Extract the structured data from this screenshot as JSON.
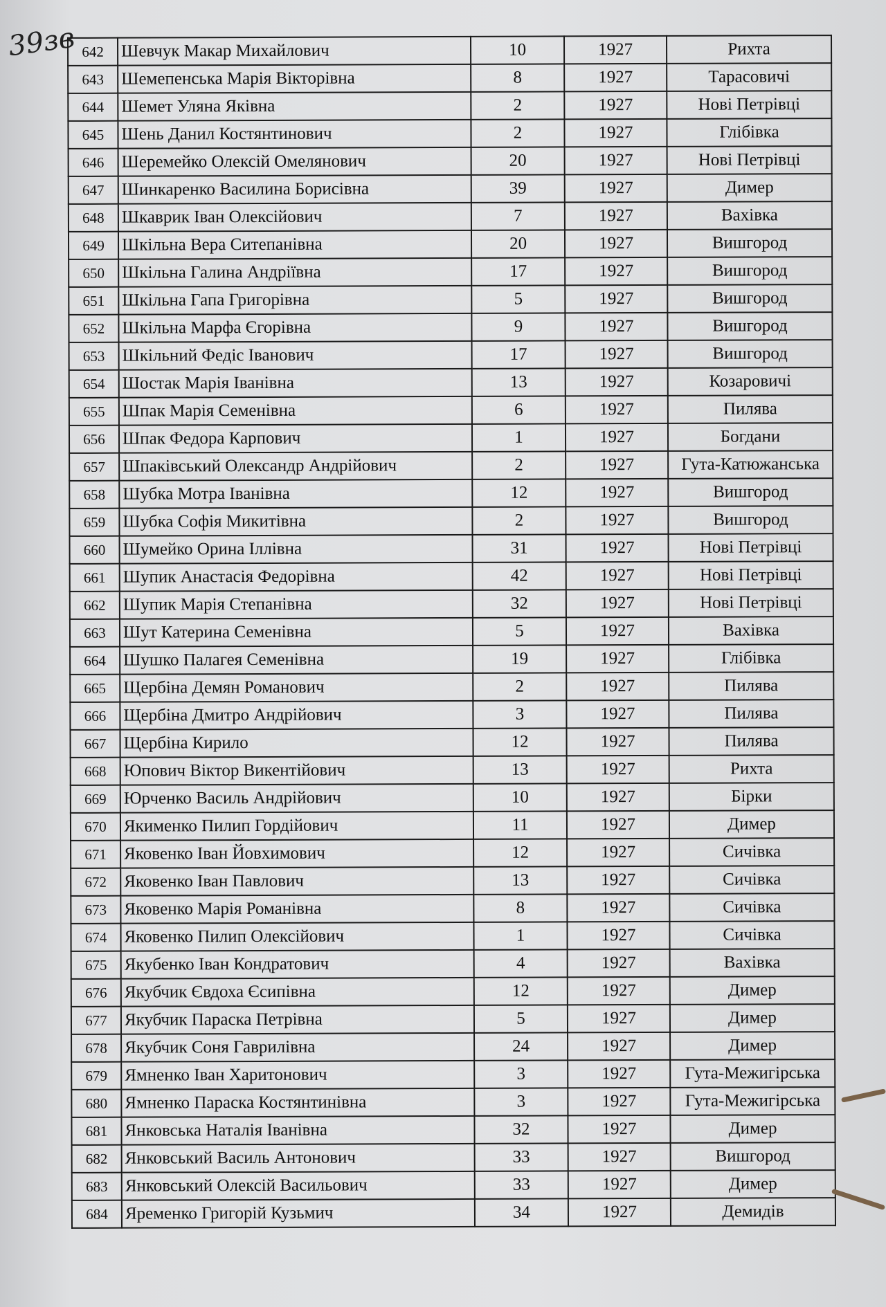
{
  "folio_mark": "39зв",
  "rows": [
    [
      "642",
      "Шевчук Макар Михайлович",
      "10",
      "1927",
      "Рихта"
    ],
    [
      "643",
      "Шемепенська Марія Вікторівна",
      "8",
      "1927",
      "Тарасовичі"
    ],
    [
      "644",
      "Шемет Уляна Яківна",
      "2",
      "1927",
      "Нові Петрівці"
    ],
    [
      "645",
      "Шень Данил Костянтинович",
      "2",
      "1927",
      "Глібівка"
    ],
    [
      "646",
      "Шеремейко Олексій Омелянович",
      "20",
      "1927",
      "Нові Петрівці"
    ],
    [
      "647",
      "Шинкаренко Василина Борисівна",
      "39",
      "1927",
      "Димер"
    ],
    [
      "648",
      "Шкаврик Іван Олексійович",
      "7",
      "1927",
      "Вахівка"
    ],
    [
      "649",
      "Шкільна Вера Ситепанівна",
      "20",
      "1927",
      "Вишгород"
    ],
    [
      "650",
      "Шкільна Галина Андріївна",
      "17",
      "1927",
      "Вишгород"
    ],
    [
      "651",
      "Шкільна Гапа Григорівна",
      "5",
      "1927",
      "Вишгород"
    ],
    [
      "652",
      "Шкільна Марфа Єгорівна",
      "9",
      "1927",
      "Вишгород"
    ],
    [
      "653",
      "Шкільний Федіс Іванович",
      "17",
      "1927",
      "Вишгород"
    ],
    [
      "654",
      "Шостак Марія Іванівна",
      "13",
      "1927",
      "Козаровичі"
    ],
    [
      "655",
      "Шпак Марія Семенівна",
      "6",
      "1927",
      "Пилява"
    ],
    [
      "656",
      "Шпак Федора Карпович",
      "1",
      "1927",
      "Богдани"
    ],
    [
      "657",
      "Шпаківський Олександр Андрійович",
      "2",
      "1927",
      "Гута-Катюжанська"
    ],
    [
      "658",
      "Шубка Мотра Іванівна",
      "12",
      "1927",
      "Вишгород"
    ],
    [
      "659",
      "Шубка Софія Микитівна",
      "2",
      "1927",
      "Вишгород"
    ],
    [
      "660",
      "Шумейко Орина Іллівна",
      "31",
      "1927",
      "Нові Петрівці"
    ],
    [
      "661",
      "Шупик Анастасія Федорівна",
      "42",
      "1927",
      "Нові Петрівці"
    ],
    [
      "662",
      "Шупик Марія Степанівна",
      "32",
      "1927",
      "Нові Петрівці"
    ],
    [
      "663",
      "Шут Катерина Семенівна",
      "5",
      "1927",
      "Вахівка"
    ],
    [
      "664",
      "Шушко Палагея Семенівна",
      "19",
      "1927",
      "Глібівка"
    ],
    [
      "665",
      "Щербіна Демян Романович",
      "2",
      "1927",
      "Пилява"
    ],
    [
      "666",
      "Щербіна Дмитро Андрійович",
      "3",
      "1927",
      "Пилява"
    ],
    [
      "667",
      "Щербіна Кирило",
      "12",
      "1927",
      "Пилява"
    ],
    [
      "668",
      "Юпович Віктор Викентійович",
      "13",
      "1927",
      "Рихта"
    ],
    [
      "669",
      "Юрченко Василь Андрійович",
      "10",
      "1927",
      "Бірки"
    ],
    [
      "670",
      "Якименко Пилип Гордійович",
      "11",
      "1927",
      "Димер"
    ],
    [
      "671",
      "Яковенко Іван Йовхимович",
      "12",
      "1927",
      "Сичівка"
    ],
    [
      "672",
      "Яковенко Іван Павлович",
      "13",
      "1927",
      "Сичівка"
    ],
    [
      "673",
      "Яковенко Марія Романівна",
      "8",
      "1927",
      "Сичівка"
    ],
    [
      "674",
      "Яковенко Пилип Олексійович",
      "1",
      "1927",
      "Сичівка"
    ],
    [
      "675",
      "Якубенко Іван Кондратович",
      "4",
      "1927",
      "Вахівка"
    ],
    [
      "676",
      "Якубчик Євдоха Єсипівна",
      "12",
      "1927",
      "Димер"
    ],
    [
      "677",
      "Якубчик Параска Петрівна",
      "5",
      "1927",
      "Димер"
    ],
    [
      "678",
      "Якубчик Соня Гаврилівна",
      "24",
      "1927",
      "Димер"
    ],
    [
      "679",
      "Ямненко Іван Харитонович",
      "3",
      "1927",
      "Гута-Межигірська"
    ],
    [
      "680",
      "Ямненко Параска Костянтинівна",
      "3",
      "1927",
      "Гута-Межигірська"
    ],
    [
      "681",
      "Янковська Наталія Іванівна",
      "32",
      "1927",
      "Димер"
    ],
    [
      "682",
      "Янковський Василь Антонович",
      "33",
      "1927",
      "Вишгород"
    ],
    [
      "683",
      "Янковський Олексій Васильович",
      "33",
      "1927",
      "Димер"
    ],
    [
      "684",
      "Яременко Григорій Кузьмич",
      "34",
      "1927",
      "Демидів"
    ]
  ]
}
